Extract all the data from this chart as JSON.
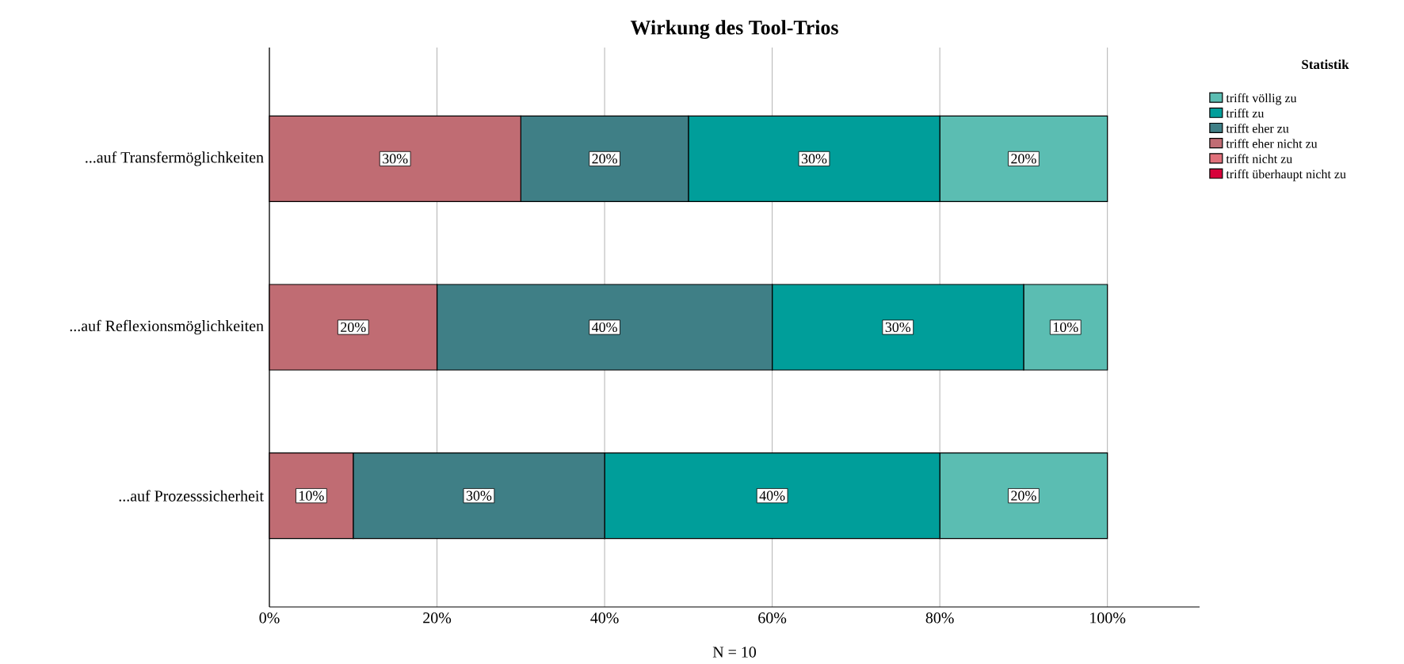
{
  "chart_data": {
    "type": "bar",
    "orientation": "horizontal",
    "stacked": true,
    "title": "Wirkung des Tool-Trios",
    "xlabel": "N = 10",
    "legend_title": "Statistik",
    "legend": "top right",
    "grid": "x",
    "categories": [
      "...auf Transfermöglichkeiten",
      "...auf Reflexionsmöglichkeiten",
      "...auf Prozesssicherheit"
    ],
    "xlim": [
      0,
      111
    ],
    "xticks": [
      {
        "value": 0,
        "label": "0%"
      },
      {
        "value": 20,
        "label": "20%"
      },
      {
        "value": 40,
        "label": "40%"
      },
      {
        "value": 60,
        "label": "60%"
      },
      {
        "value": 80,
        "label": "80%"
      },
      {
        "value": 100,
        "label": "100%"
      }
    ],
    "series": [
      {
        "name": "trifft überhaupt nicht zu",
        "color": "#d7003a",
        "values": [
          0,
          0,
          0
        ],
        "value_labels": [
          null,
          null,
          null
        ]
      },
      {
        "name": "trifft nicht zu",
        "color": "#e0707a",
        "values": [
          0,
          0,
          0
        ],
        "value_labels": [
          null,
          null,
          null
        ]
      },
      {
        "name": "trifft eher nicht zu",
        "color": "#c06c73",
        "values": [
          30,
          20,
          10
        ],
        "value_labels": [
          "30%",
          "20%",
          "10%"
        ]
      },
      {
        "name": "trifft eher zu",
        "color": "#3f7f86",
        "values": [
          20,
          40,
          30
        ],
        "value_labels": [
          "20%",
          "40%",
          "30%"
        ]
      },
      {
        "name": "trifft zu",
        "color": "#009e9a",
        "values": [
          30,
          30,
          40
        ],
        "value_labels": [
          "30%",
          "30%",
          "40%"
        ]
      },
      {
        "name": "trifft völlig zu",
        "color": "#5bbdb2",
        "values": [
          20,
          10,
          20
        ],
        "value_labels": [
          "20%",
          "10%",
          "20%"
        ]
      }
    ]
  }
}
